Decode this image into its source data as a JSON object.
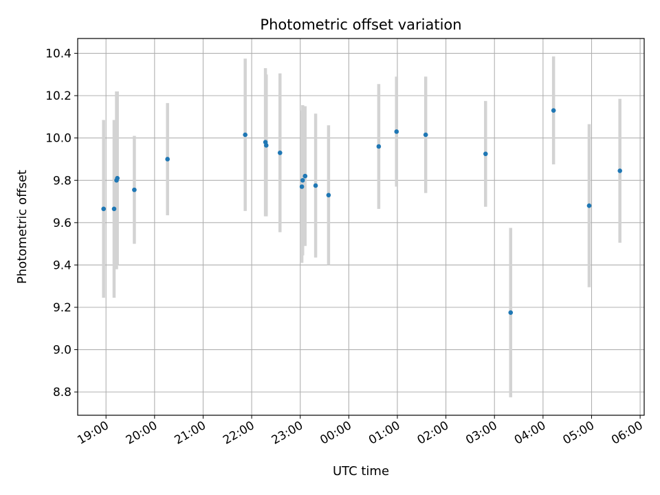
{
  "chart_data": {
    "type": "scatter",
    "title": "Photometric offset variation",
    "xlabel": "UTC time",
    "ylabel": "Photometric offset",
    "grid": true,
    "x_ticks": [
      "19:00",
      "20:00",
      "21:00",
      "22:00",
      "23:00",
      "00:00",
      "01:00",
      "02:00",
      "03:00",
      "04:00",
      "05:00",
      "06:00"
    ],
    "y_ticks": [
      "8.8",
      "9.0",
      "9.2",
      "9.4",
      "9.6",
      "9.8",
      "10.0",
      "10.2",
      "10.4"
    ],
    "xlim": [
      "18:25",
      "06:05"
    ],
    "ylim": [
      8.69,
      10.47
    ],
    "colors": {
      "point": "#1f77b4",
      "errorbar": "#d3d3d3",
      "grid": "#b0b0b0"
    },
    "series": [
      {
        "x": [
          "18:57",
          "19:10",
          "19:13",
          "19:14",
          "19:35",
          "20:16",
          "21:52",
          "22:17",
          "22:18",
          "22:35",
          "23:02",
          "23:03",
          "23:06",
          "23:19",
          "23:35",
          "00:37",
          "00:59",
          "01:35",
          "02:49",
          "03:20",
          "04:13",
          "04:57",
          "05:35"
        ],
        "y": [
          9.665,
          9.665,
          9.8,
          9.81,
          9.755,
          9.9,
          10.015,
          9.98,
          9.965,
          9.93,
          9.77,
          9.8,
          9.82,
          9.775,
          9.73,
          9.96,
          10.03,
          10.015,
          9.925,
          9.175,
          10.13,
          9.68,
          9.845
        ],
        "yerr": [
          0.42,
          0.42,
          0.42,
          0.41,
          0.255,
          0.265,
          0.36,
          0.35,
          0.335,
          0.375,
          0.36,
          0.355,
          0.33,
          0.34,
          0.33,
          0.295,
          0.26,
          0.275,
          0.25,
          0.4,
          0.255,
          0.385,
          0.34
        ]
      }
    ]
  }
}
